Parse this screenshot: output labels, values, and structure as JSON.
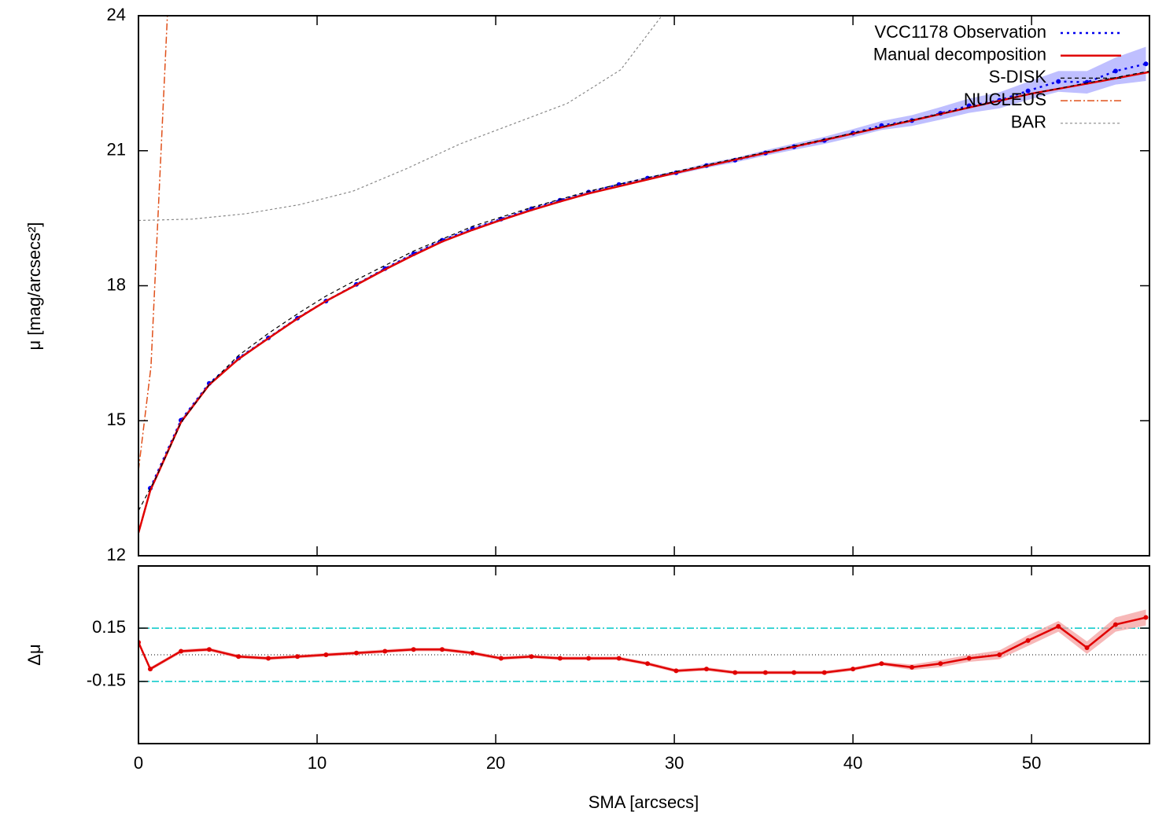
{
  "chart_data": [
    {
      "type": "line",
      "ylabel": "μ [mag/arcsecs²]",
      "xlim": [
        0,
        56.6
      ],
      "ylim": [
        12,
        24
      ],
      "yticks": [
        12,
        15,
        18,
        21,
        24
      ],
      "legend": "upper right",
      "series": [
        {
          "name": "VCC1178 Observation",
          "color": "#0000ee",
          "style": "dotted",
          "markers": true,
          "band_color": "#aaaaff",
          "x": [
            0.66,
            2.38,
            3.96,
            5.6,
            7.27,
            8.9,
            10.5,
            12.2,
            13.8,
            15.4,
            17.0,
            18.7,
            20.3,
            22.0,
            23.6,
            25.2,
            26.9,
            28.5,
            30.1,
            31.8,
            33.4,
            35.1,
            36.7,
            38.4,
            40.0,
            41.6,
            43.3,
            44.9,
            46.5,
            48.2,
            49.8,
            51.5,
            53.1,
            54.7,
            56.4
          ],
          "values": [
            13.5,
            15.01,
            15.83,
            16.39,
            16.84,
            17.28,
            17.66,
            18.03,
            18.38,
            18.71,
            19.01,
            19.27,
            19.48,
            19.71,
            19.9,
            20.08,
            20.25,
            20.39,
            20.51,
            20.67,
            20.79,
            20.95,
            21.09,
            21.23,
            21.39,
            21.56,
            21.67,
            21.83,
            22.0,
            22.12,
            22.33,
            22.54,
            22.52,
            22.77,
            22.93
          ],
          "errors": [
            0.02,
            0.02,
            0.02,
            0.02,
            0.02,
            0.02,
            0.02,
            0.02,
            0.02,
            0.02,
            0.02,
            0.02,
            0.02,
            0.02,
            0.02,
            0.02,
            0.02,
            0.03,
            0.04,
            0.05,
            0.05,
            0.06,
            0.07,
            0.08,
            0.09,
            0.1,
            0.12,
            0.14,
            0.16,
            0.18,
            0.2,
            0.23,
            0.25,
            0.3,
            0.38
          ]
        },
        {
          "name": "Manual decomposition",
          "color": "#e00000",
          "style": "solid",
          "x": [
            0,
            0.66,
            1.06,
            2.38,
            3.96,
            5.6,
            7.27,
            8.9,
            10.5,
            12.2,
            13.8,
            15.4,
            17.0,
            18.7,
            20.3,
            22.0,
            23.6,
            25.2,
            26.9,
            28.5,
            30.1,
            33.4,
            36.7,
            40.0,
            43.3,
            46.5,
            50,
            53.1,
            56.6
          ],
          "values": [
            12.51,
            13.45,
            13.8,
            14.97,
            15.8,
            16.37,
            16.83,
            17.27,
            17.66,
            18.02,
            18.36,
            18.68,
            18.98,
            19.24,
            19.46,
            19.68,
            19.87,
            20.05,
            20.21,
            20.36,
            20.51,
            20.8,
            21.09,
            21.38,
            21.67,
            21.96,
            22.27,
            22.49,
            22.75
          ]
        },
        {
          "name": "S-DISK",
          "color": "#000000",
          "style": "dashed",
          "x": [
            0,
            1,
            2.4,
            4,
            5.6,
            7.3,
            9,
            10.5,
            12.2,
            15.4,
            18.7,
            22,
            25.2,
            28.5,
            30,
            40,
            50,
            56.6
          ],
          "values": [
            13.0,
            13.75,
            14.97,
            15.82,
            16.45,
            16.95,
            17.4,
            17.77,
            18.13,
            18.77,
            19.32,
            19.74,
            20.1,
            20.4,
            20.53,
            21.39,
            22.27,
            22.77
          ]
        },
        {
          "name": "NUCLEUS",
          "color": "#e0501a",
          "style": "dashdot",
          "x": [
            0,
            0.7,
            1.63
          ],
          "values": [
            13.9,
            16.2,
            24.1
          ]
        },
        {
          "name": "BAR",
          "color": "#888888",
          "style": "fine",
          "x": [
            0,
            3,
            6,
            9,
            12,
            15,
            18,
            21,
            24,
            27,
            29.3,
            30
          ],
          "values": [
            19.45,
            19.48,
            19.6,
            19.8,
            20.1,
            20.6,
            21.15,
            21.6,
            22.05,
            22.8,
            24.0,
            24.2
          ]
        }
      ]
    },
    {
      "type": "line",
      "ylabel": "Δμ",
      "xlabel": "SMA [arcsecs]",
      "xlim": [
        0,
        56.6
      ],
      "xticks": [
        0,
        10,
        20,
        30,
        40,
        50
      ],
      "ylim": [
        -0.5,
        0.5
      ],
      "yticks": [
        0.15,
        -0.15
      ],
      "grid": true,
      "grid_color": "#00c8c8",
      "zero_line": true,
      "series": [
        {
          "color": "#e00000",
          "style": "solid",
          "markers": true,
          "band_color": "#f4a0a0",
          "x": [
            0,
            0.66,
            2.38,
            3.96,
            5.6,
            7.27,
            8.9,
            10.5,
            12.2,
            13.8,
            15.4,
            17.0,
            18.7,
            20.3,
            22.0,
            23.6,
            25.2,
            26.9,
            28.5,
            30.1,
            31.8,
            33.4,
            35.1,
            36.7,
            38.4,
            40.0,
            41.6,
            43.3,
            44.9,
            46.5,
            48.2,
            49.8,
            51.5,
            53.1,
            54.7,
            56.4
          ],
          "values": [
            0.07,
            -0.08,
            0.02,
            0.03,
            -0.01,
            -0.02,
            -0.01,
            0.0,
            0.01,
            0.02,
            0.03,
            0.03,
            0.01,
            -0.02,
            -0.01,
            -0.02,
            -0.02,
            -0.02,
            -0.05,
            -0.09,
            -0.08,
            -0.1,
            -0.1,
            -0.1,
            -0.1,
            -0.08,
            -0.05,
            -0.07,
            -0.05,
            -0.02,
            0.0,
            0.08,
            0.16,
            0.04,
            0.17,
            0.21
          ],
          "errors": [
            0.01,
            0.01,
            0.01,
            0.01,
            0.01,
            0.01,
            0.01,
            0.01,
            0.01,
            0.01,
            0.01,
            0.01,
            0.01,
            0.01,
            0.01,
            0.01,
            0.01,
            0.01,
            0.01,
            0.01,
            0.01,
            0.01,
            0.01,
            0.01,
            0.01,
            0.01,
            0.01,
            0.015,
            0.02,
            0.02,
            0.025,
            0.03,
            0.03,
            0.035,
            0.04,
            0.045
          ]
        }
      ]
    }
  ]
}
